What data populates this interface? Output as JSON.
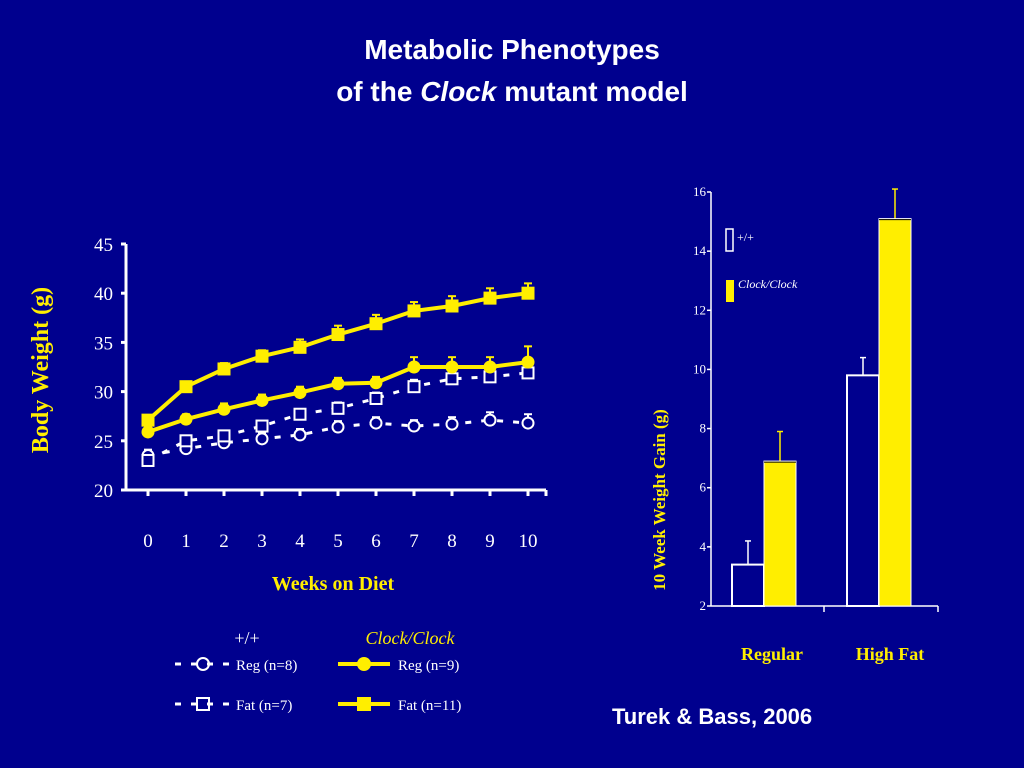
{
  "slide": {
    "title_line1": "Metabolic Phenotypes",
    "title_line2_pre": "of the ",
    "title_line2_italic": "Clock",
    "title_line2_post": " mutant model",
    "credit": "Turek & Bass, 2006"
  },
  "colors": {
    "background": "#00008e",
    "yellow": "#ffee00",
    "white": "#ffffff"
  },
  "chart_data": [
    {
      "type": "line",
      "ylabel": "Body Weight (g)",
      "xlabel": "Weeks on Diet",
      "ylim": [
        20,
        45
      ],
      "yticks": [
        20,
        25,
        30,
        35,
        40,
        45
      ],
      "x": [
        0,
        1,
        2,
        3,
        4,
        5,
        6,
        7,
        8,
        9,
        10
      ],
      "legend": {
        "group_wt": "+/+",
        "group_mut": "Clock/Clock",
        "wt_reg": "Reg (n=8)",
        "mut_reg": "Reg (n=9)",
        "wt_fat": "Fat (n=7)",
        "mut_fat": "Fat (n=11)"
      },
      "series": [
        {
          "name": "+/+ Reg (n=8)",
          "genotype": "+/+",
          "diet": "Reg",
          "color": "#ffffff",
          "style": "dashed",
          "marker": "circle",
          "values": [
            23.5,
            24.2,
            24.8,
            25.2,
            25.6,
            26.4,
            26.8,
            26.5,
            26.7,
            27.1,
            26.8
          ],
          "errors": [
            0.6,
            0.6,
            0.6,
            0.6,
            0.6,
            0.6,
            0.6,
            0.6,
            0.7,
            0.8,
            0.9
          ]
        },
        {
          "name": "+/+ Fat (n=7)",
          "genotype": "+/+",
          "diet": "Fat",
          "color": "#ffffff",
          "style": "dashed",
          "marker": "square",
          "values": [
            23.0,
            25.0,
            25.5,
            26.5,
            27.7,
            28.3,
            29.3,
            30.5,
            31.3,
            31.5,
            31.9
          ],
          "errors": [
            0.5,
            0.5,
            0.5,
            0.5,
            0.5,
            0.6,
            0.6,
            0.7,
            0.7,
            0.7,
            0.8
          ]
        },
        {
          "name": "Clock/Clock Reg (n=9)",
          "genotype": "Clock/Clock",
          "diet": "Reg",
          "color": "#ffee00",
          "style": "solid",
          "marker": "circle",
          "values": [
            25.9,
            27.2,
            28.2,
            29.1,
            29.9,
            30.8,
            30.9,
            32.5,
            32.5,
            32.5,
            33.0
          ],
          "errors": [
            0.5,
            0.5,
            0.6,
            0.6,
            0.6,
            0.6,
            0.6,
            1.0,
            1.0,
            1.0,
            1.6
          ]
        },
        {
          "name": "Clock/Clock Fat (n=11)",
          "genotype": "Clock/Clock",
          "diet": "Fat",
          "color": "#ffee00",
          "style": "solid",
          "marker": "square",
          "values": [
            27.1,
            30.5,
            32.3,
            33.6,
            34.5,
            35.8,
            36.9,
            38.2,
            38.7,
            39.5,
            40.0
          ],
          "errors": [
            0.5,
            0.5,
            0.6,
            0.6,
            0.8,
            0.9,
            0.9,
            0.9,
            1.0,
            1.0,
            1.0
          ]
        }
      ]
    },
    {
      "type": "bar",
      "ylabel": "10 Week Weight Gain (g)",
      "categories": [
        "Regular",
        "High Fat"
      ],
      "ylim": [
        2,
        16
      ],
      "yticks": [
        2,
        4,
        6,
        8,
        10,
        12,
        14,
        16
      ],
      "legend": {
        "wt": "+/+",
        "mut": "Clock/Clock"
      },
      "series": [
        {
          "name": "+/+",
          "color": "#ffffff",
          "fill": "none",
          "values": [
            3.4,
            9.8
          ],
          "errors": [
            0.8,
            0.6
          ]
        },
        {
          "name": "Clock/Clock",
          "color": "#ffee00",
          "fill": "#ffee00",
          "values": [
            6.9,
            15.1
          ],
          "errors": [
            1.0,
            1.0
          ]
        }
      ]
    }
  ]
}
